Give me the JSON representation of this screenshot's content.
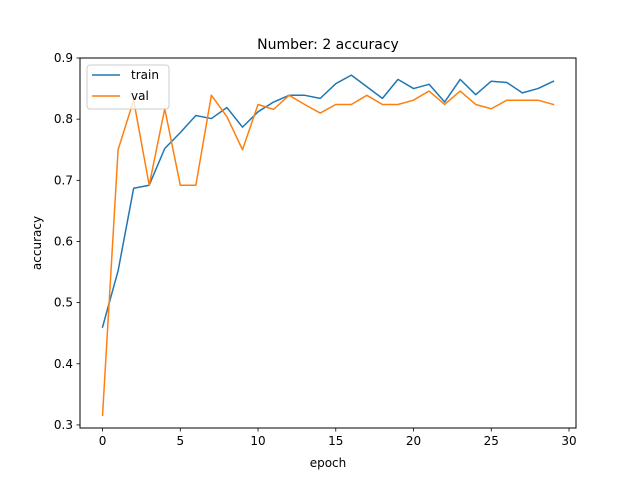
{
  "chart_data": {
    "type": "line",
    "title": "Number: 2 accuracy",
    "xlabel": "epoch",
    "ylabel": "accuracy",
    "xlim": [
      -1.45,
      30.45
    ],
    "ylim": [
      0.295,
      0.9
    ],
    "xticks": [
      0,
      5,
      10,
      15,
      20,
      25,
      30
    ],
    "yticks": [
      0.3,
      0.4,
      0.5,
      0.6,
      0.7,
      0.8,
      0.9
    ],
    "xtick_labels": [
      "0",
      "5",
      "10",
      "15",
      "20",
      "25",
      "30"
    ],
    "ytick_labels": [
      "0.3",
      "0.4",
      "0.5",
      "0.6",
      "0.7",
      "0.8",
      "0.9"
    ],
    "grid": false,
    "legend_position": "top-left",
    "x": [
      0,
      1,
      2,
      3,
      4,
      5,
      6,
      7,
      8,
      9,
      10,
      11,
      12,
      13,
      14,
      15,
      16,
      17,
      18,
      19,
      20,
      21,
      22,
      23,
      24,
      25,
      26,
      27,
      28,
      29
    ],
    "series": [
      {
        "name": "train",
        "color": "#1f77b4",
        "values": [
          0.46,
          0.552,
          0.687,
          0.692,
          0.752,
          0.778,
          0.806,
          0.801,
          0.819,
          0.787,
          0.812,
          0.828,
          0.839,
          0.839,
          0.834,
          0.858,
          0.872,
          0.853,
          0.834,
          0.865,
          0.85,
          0.857,
          0.828,
          0.865,
          0.84,
          0.862,
          0.86,
          0.843,
          0.85,
          0.862
        ]
      },
      {
        "name": "val",
        "color": "#ff7f0e",
        "values": [
          0.316,
          0.75,
          0.831,
          0.692,
          0.817,
          0.692,
          0.692,
          0.839,
          0.804,
          0.75,
          0.824,
          0.816,
          0.839,
          0.824,
          0.81,
          0.824,
          0.824,
          0.839,
          0.824,
          0.824,
          0.831,
          0.846,
          0.824,
          0.846,
          0.824,
          0.817,
          0.831,
          0.831,
          0.831,
          0.824
        ]
      }
    ]
  }
}
